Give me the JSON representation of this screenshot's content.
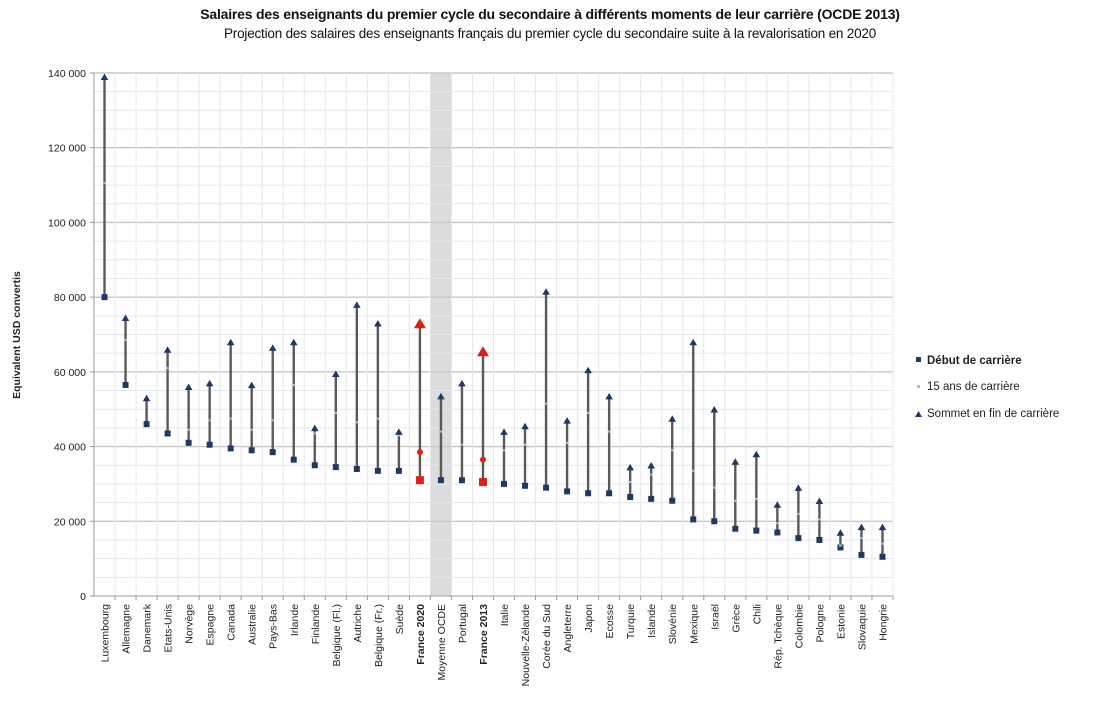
{
  "chart_data": {
    "type": "range",
    "title": "Salaires des enseignants du premier cycle du secondaire à différents moments de leur carrière (OCDE 2013)",
    "subtitle": "Projection des salaires des enseignants français du premier cycle du secondaire suite à la revalorisation en 2020",
    "ylabel": "Equivalent USD convertis",
    "xlabel": "",
    "ylim": [
      0,
      140000
    ],
    "yticks": [
      0,
      20000,
      40000,
      60000,
      80000,
      100000,
      120000,
      140000
    ],
    "ytick_labels": [
      "0",
      "20 000",
      "40 000",
      "60 000",
      "80 000",
      "100 000",
      "120 000",
      "140 000"
    ],
    "grid": true,
    "legend_position": "right",
    "legend": [
      "Début de carrière",
      "15 ans de carrière",
      "Sommet en fin de carrière"
    ],
    "highlight_color": "#e02010",
    "series_color": "#1f3864",
    "mid_color": "#9dc3e6",
    "shaded_category": "Moyenne OCDE",
    "categories": [
      "Luxembourg",
      "Allemagne",
      "Danemark",
      "Etats-Unis",
      "Norvège",
      "Espagne",
      "Canada",
      "Australie",
      "Pays-Bas",
      "Irlande",
      "Finlande",
      "Belgique (Fl.)",
      "Autriche",
      "Belgique (Fr.)",
      "Suède",
      "France 2020",
      "Moyenne OCDE",
      "Portugal",
      "France 2013",
      "Italie",
      "Nouvelle-Zélande",
      "Corée du Sud",
      "Angleterre",
      "Japon",
      "Ecosse",
      "Turquie",
      "Islande",
      "Slovénie",
      "Mexique",
      "Israël",
      "Grèce",
      "Chili",
      "Rép. Tchèque",
      "Colombie",
      "Pologne",
      "Estonie",
      "Slovaquie",
      "Hongrie"
    ],
    "highlighted": [
      "France 2020",
      "France 2013"
    ],
    "series": [
      {
        "name": "Début de carrière",
        "values": [
          80000,
          56500,
          46000,
          43500,
          41000,
          40500,
          39500,
          39000,
          38500,
          36500,
          35000,
          34500,
          34000,
          33500,
          33500,
          31000,
          31000,
          31000,
          30500,
          30000,
          29500,
          29000,
          28000,
          27500,
          27500,
          26500,
          26000,
          25500,
          20500,
          20000,
          18000,
          17500,
          17000,
          15500,
          15000,
          13000,
          11000,
          10500
        ]
      },
      {
        "name": "15 ans de carrière",
        "values": [
          110500,
          68500,
          52500,
          61000,
          44500,
          47000,
          47500,
          44500,
          47000,
          56500,
          43500,
          49000,
          46500,
          47500,
          43000,
          38500,
          44000,
          40500,
          36500,
          39000,
          40500,
          51500,
          41000,
          49000,
          44000,
          30500,
          32500,
          39000,
          33500,
          29000,
          25500,
          26000,
          19500,
          22000,
          20500,
          13500,
          15500,
          14000
        ]
      },
      {
        "name": "Sommet en fin de carrière",
        "values": [
          139000,
          74500,
          53000,
          66000,
          56000,
          57000,
          68000,
          56500,
          66500,
          68000,
          45000,
          59500,
          78000,
          73000,
          44000,
          73000,
          53500,
          57000,
          65500,
          44000,
          45500,
          81500,
          47000,
          60500,
          53500,
          34500,
          35000,
          47500,
          68000,
          50000,
          36000,
          38000,
          24500,
          29000,
          25500,
          17000,
          18500,
          18500
        ]
      }
    ]
  }
}
